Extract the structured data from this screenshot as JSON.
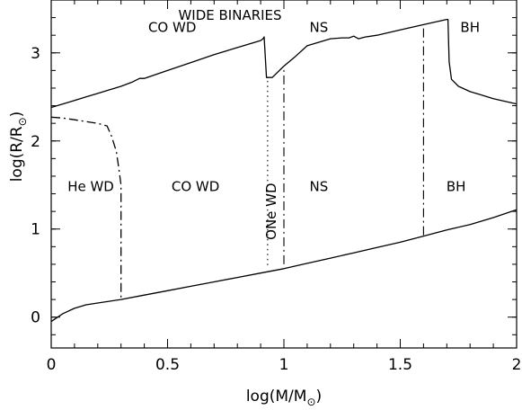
{
  "chart_data": {
    "type": "line",
    "title": "WIDE BINARIES",
    "xlabel": {
      "main": "log(M/M",
      "sub": "⊙",
      "close": ")"
    },
    "ylabel": {
      "main": "log(R/R",
      "sub": "⊙",
      "close": ")"
    },
    "xlim": [
      0,
      2
    ],
    "ylim": [
      -0.35,
      3.6
    ],
    "xticks": [
      0,
      0.5,
      1,
      1.5,
      2
    ],
    "xtick_labels": [
      "0",
      "0.5",
      "1",
      "1.5",
      "2"
    ],
    "yticks": [
      0,
      1,
      2,
      3
    ],
    "ytick_labels": [
      "0",
      "1",
      "2",
      "3"
    ],
    "grid": false,
    "series": [
      {
        "style": "solid",
        "x": [
          0,
          0.05,
          0.1,
          0.15,
          0.2,
          0.25,
          0.3,
          0.35,
          0.38,
          0.4,
          0.5,
          0.6,
          0.7,
          0.8,
          0.9,
          0.91,
          0.915,
          0.925,
          0.95,
          1.0,
          1.05,
          1.1,
          1.15,
          1.2,
          1.25,
          1.28,
          1.3,
          1.32,
          1.35,
          1.4,
          1.5,
          1.6,
          1.65,
          1.7,
          1.705,
          1.71,
          1.72,
          1.75,
          1.8,
          1.85,
          1.9,
          2.0
        ],
        "y": [
          2.38,
          2.42,
          2.46,
          2.5,
          2.54,
          2.58,
          2.62,
          2.67,
          2.71,
          2.71,
          2.8,
          2.89,
          2.98,
          3.06,
          3.14,
          3.16,
          3.18,
          2.72,
          2.72,
          2.85,
          2.96,
          3.08,
          3.12,
          3.16,
          3.17,
          3.17,
          3.19,
          3.16,
          3.18,
          3.2,
          3.26,
          3.32,
          3.35,
          3.38,
          3.38,
          2.9,
          2.7,
          2.62,
          2.56,
          2.52,
          2.48,
          2.42
        ]
      },
      {
        "style": "solid",
        "x": [
          0,
          0.05,
          0.1,
          0.15,
          0.2,
          0.3,
          0.4,
          0.5,
          0.6,
          0.7,
          0.8,
          0.9,
          1.0,
          1.1,
          1.2,
          1.3,
          1.4,
          1.5,
          1.6,
          1.7,
          1.8,
          1.9,
          2.0
        ],
        "y": [
          -0.05,
          0.04,
          0.1,
          0.14,
          0.16,
          0.2,
          0.25,
          0.3,
          0.35,
          0.4,
          0.45,
          0.5,
          0.55,
          0.61,
          0.67,
          0.73,
          0.79,
          0.85,
          0.92,
          0.99,
          1.05,
          1.13,
          1.22
        ]
      },
      {
        "style": "dash-dot",
        "x": [
          0,
          0.05,
          0.1,
          0.15,
          0.2,
          0.24,
          0.26,
          0.28,
          0.29,
          0.3,
          0.3
        ],
        "y": [
          2.27,
          2.26,
          2.24,
          2.22,
          2.2,
          2.17,
          2.05,
          1.88,
          1.7,
          1.5,
          0.2
        ]
      }
    ],
    "boundaries": [
      {
        "x": 0.93,
        "style": "dotted",
        "y_bottom": 0.59,
        "y_top": 2.72
      },
      {
        "x": 1.0,
        "style": "dash-dot",
        "y_bottom": 0.6,
        "y_top": 2.85
      },
      {
        "x": 1.6,
        "style": "dash-dot",
        "y_bottom": 0.93,
        "y_top": 3.32
      }
    ],
    "annotations": {
      "top": [
        {
          "text": "CO WD",
          "x": 0.52,
          "y": 3.24
        },
        {
          "text": "NS",
          "x": 1.15,
          "y": 3.24
        },
        {
          "text": "BH",
          "x": 1.8,
          "y": 3.24
        }
      ],
      "bottom": [
        {
          "text": "He WD",
          "x": 0.17,
          "y": 1.43
        },
        {
          "text": "CO WD",
          "x": 0.62,
          "y": 1.43
        },
        {
          "text": "NS",
          "x": 1.15,
          "y": 1.43
        },
        {
          "text": "BH",
          "x": 1.74,
          "y": 1.43
        }
      ],
      "vertical": [
        {
          "text": "ONe WD",
          "x": 0.965,
          "y": 1.2
        }
      ]
    }
  }
}
